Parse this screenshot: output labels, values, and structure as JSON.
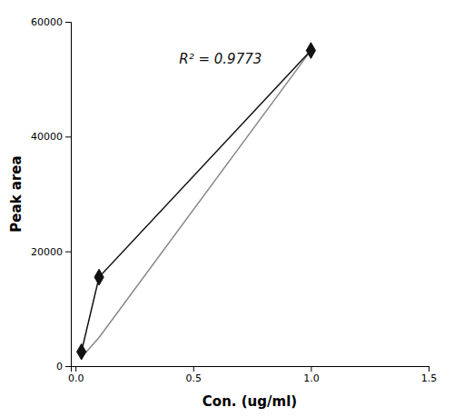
{
  "chart_data": {
    "type": "line",
    "x": [
      0.025,
      0.1,
      1.0
    ],
    "series": [
      {
        "color": "#888888",
        "values": [
          1500,
          5000,
          55000
        ]
      },
      {
        "color": "#111111",
        "marker": "diamond",
        "values": [
          2500,
          15500,
          55000
        ]
      }
    ],
    "annotations": [
      {
        "text": "R² = 0.9773",
        "x": 0.44,
        "y": 53500
      }
    ],
    "xlabel": "Con. (ug/ml)",
    "ylabel": "Peak area",
    "xlim": [
      -0.02,
      1.5
    ],
    "ylim": [
      0,
      60000
    ],
    "xticks": [
      {
        "value": 0,
        "label": "0.0"
      },
      0.5,
      {
        "value": 1.0,
        "label": "1.0"
      },
      1.5
    ],
    "yticks": [
      0,
      20000,
      40000,
      60000
    ],
    "grid": false
  }
}
